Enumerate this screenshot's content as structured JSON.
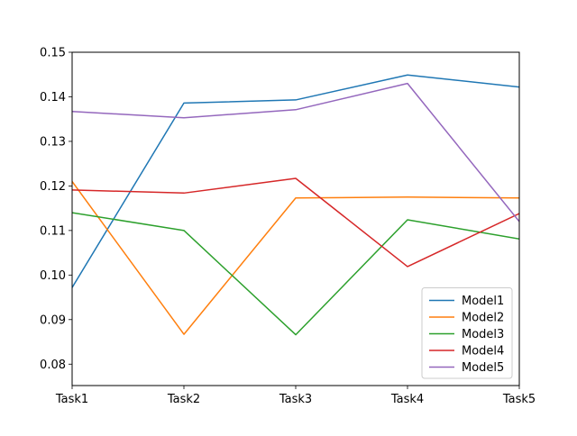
{
  "chart_data": {
    "type": "line",
    "title": "",
    "xlabel": "",
    "ylabel": "",
    "categories": [
      "Task1",
      "Task2",
      "Task3",
      "Task4",
      "Task5"
    ],
    "yticks": [
      0.08,
      0.09,
      0.1,
      0.11,
      0.12,
      0.13,
      0.14,
      0.15
    ],
    "ytick_labels": [
      "0.08",
      "0.09",
      "0.10",
      "0.11",
      "0.12",
      "0.13",
      "0.14",
      "0.15"
    ],
    "ylim": [
      0.0752,
      0.15
    ],
    "grid": false,
    "legend": {
      "placement": "lower-right"
    },
    "series": [
      {
        "name": "Model1",
        "color": "#1f77b4",
        "values": [
          0.0972,
          0.1386,
          0.1393,
          0.1449,
          0.1422
        ]
      },
      {
        "name": "Model2",
        "color": "#ff7f0e",
        "values": [
          0.121,
          0.0867,
          0.1173,
          0.1175,
          0.1173
        ]
      },
      {
        "name": "Model3",
        "color": "#2ca02c",
        "values": [
          0.114,
          0.11,
          0.0866,
          0.1124,
          0.1081
        ]
      },
      {
        "name": "Model4",
        "color": "#d62728",
        "values": [
          0.1191,
          0.1184,
          0.1217,
          0.1019,
          0.1138
        ]
      },
      {
        "name": "Model5",
        "color": "#9467bd",
        "values": [
          0.1367,
          0.1353,
          0.1371,
          0.143,
          0.112
        ]
      }
    ]
  }
}
